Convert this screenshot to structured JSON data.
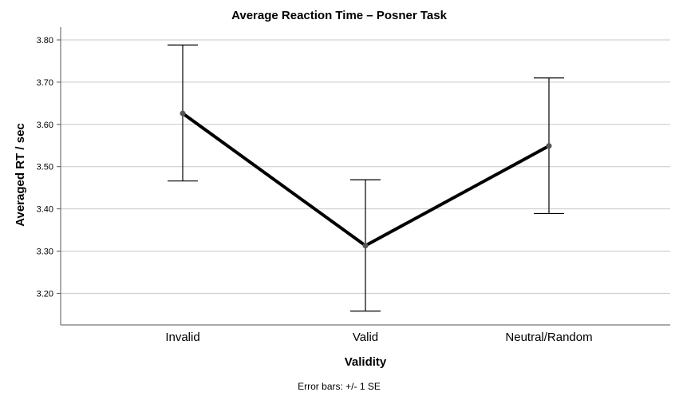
{
  "chart_data": {
    "type": "line",
    "title": "Average Reaction Time – Posner Task",
    "xlabel": "Validity",
    "ylabel": "Averaged RT / sec",
    "categories": [
      "Invalid",
      "Valid",
      "Neutral/Random"
    ],
    "series": [
      {
        "values": [
          3.626,
          3.313,
          3.549
        ],
        "error_low": [
          3.466,
          3.158,
          3.389
        ],
        "error_high": [
          3.788,
          3.469,
          3.71
        ]
      }
    ],
    "yticks": [
      "3.20",
      "3.30",
      "3.40",
      "3.50",
      "3.60",
      "3.70",
      "3.80"
    ],
    "ylim": [
      3.125,
      3.8
    ],
    "grid": true,
    "note": "Error bars: +/- 1 SE",
    "colors": {
      "line": "#000000",
      "marker": "#555555",
      "grid": "#c8c8c8",
      "axis": "#555555"
    }
  }
}
